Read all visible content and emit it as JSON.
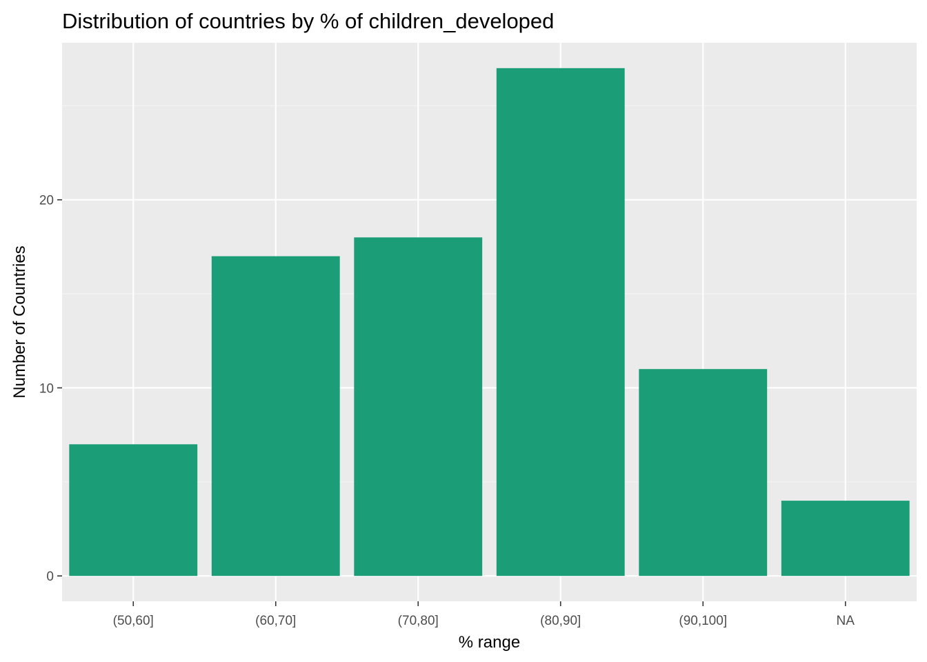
{
  "chart_data": {
    "type": "bar",
    "title": "Distribution of countries by % of children_developed",
    "xlabel": "% range",
    "ylabel": "Number of Countries",
    "categories": [
      "(50,60]",
      "(60,70]",
      "(70,80]",
      "(80,90]",
      "(90,100]",
      "NA"
    ],
    "values": [
      7,
      17,
      18,
      27,
      11,
      4
    ],
    "ylim": [
      -1.35,
      28.35
    ],
    "yticks": [
      0,
      10,
      20
    ],
    "grid": true,
    "legend": "none"
  },
  "colors": {
    "bar": "#1b9e77",
    "panel": "#ebebeb",
    "grid_major": "#ffffff",
    "grid_minor": "#f5f5f5",
    "tick_label": "#4d4d4d",
    "tick_mark": "#333333"
  }
}
